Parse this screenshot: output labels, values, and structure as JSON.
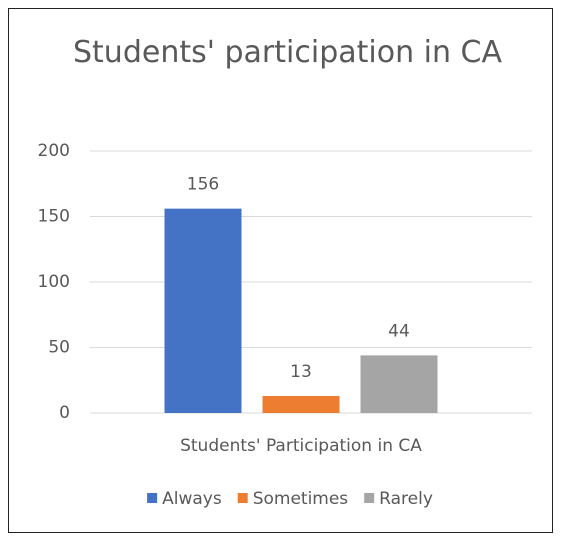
{
  "chart_data": {
    "type": "bar",
    "title": "Students' participation in CA",
    "categories": [
      "Students' Participation in CA"
    ],
    "series": [
      {
        "name": "Always",
        "color": "#4472c4",
        "values": [
          156
        ]
      },
      {
        "name": "Sometimes",
        "color": "#ed7d31",
        "values": [
          13
        ]
      },
      {
        "name": "Rarely",
        "color": "#a5a5a5",
        "values": [
          44
        ]
      }
    ],
    "ylim": [
      0,
      200
    ],
    "yticks": [
      0,
      50,
      100,
      150,
      200
    ],
    "grid": true,
    "legend": "bottom"
  }
}
